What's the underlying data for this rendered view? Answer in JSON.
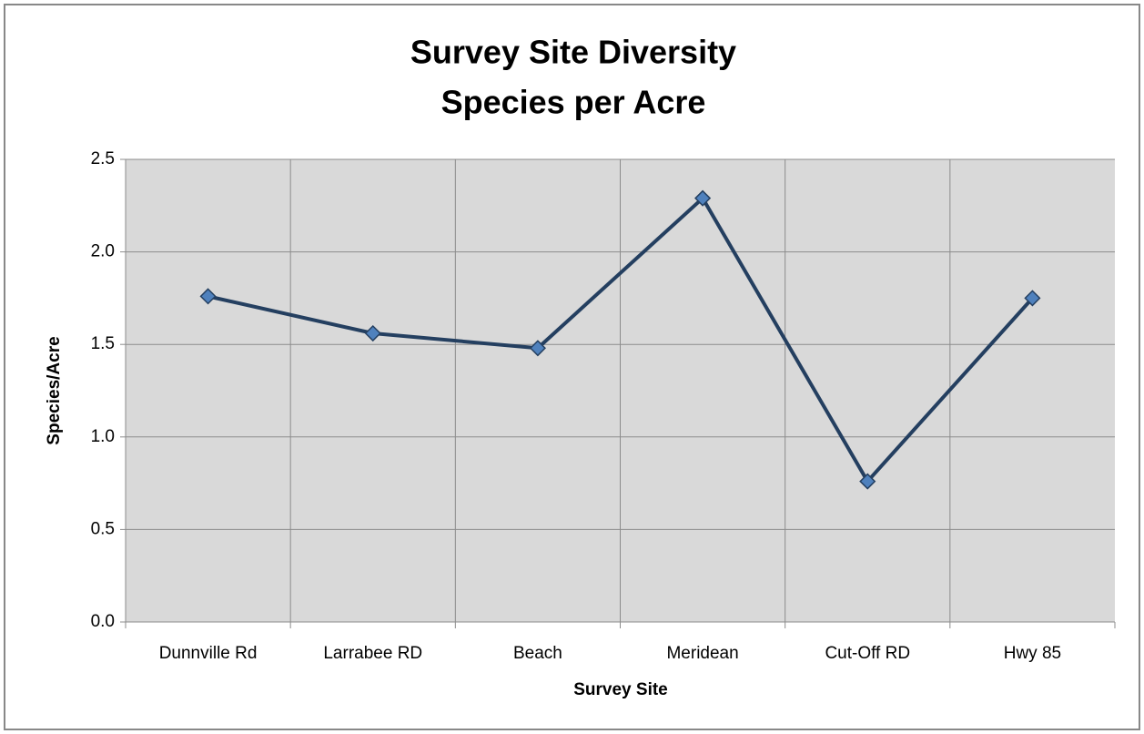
{
  "chart_data": {
    "type": "line",
    "title": "Survey Site Diversity",
    "subtitle": "Species per Acre",
    "x_label": "Survey Site",
    "y_label": "Species/Acre",
    "categories": [
      "Dunnville Rd",
      "Larrabee RD",
      "Beach",
      "Meridean",
      "Cut-Off RD",
      "Hwy 85"
    ],
    "series": [
      {
        "name": "Species/Acre",
        "color": "#243f60",
        "marker_color": "#4f81bd",
        "values": [
          1.76,
          1.56,
          1.48,
          2.29,
          0.76,
          1.75
        ]
      }
    ],
    "ylim": [
      0,
      2.5
    ],
    "yticks": [
      {
        "value": 0,
        "label": "0.0"
      },
      0.5,
      {
        "value": 1,
        "label": "1.0"
      },
      1.5,
      {
        "value": 2,
        "label": "2.0"
      },
      2.5
    ],
    "grid": true
  }
}
